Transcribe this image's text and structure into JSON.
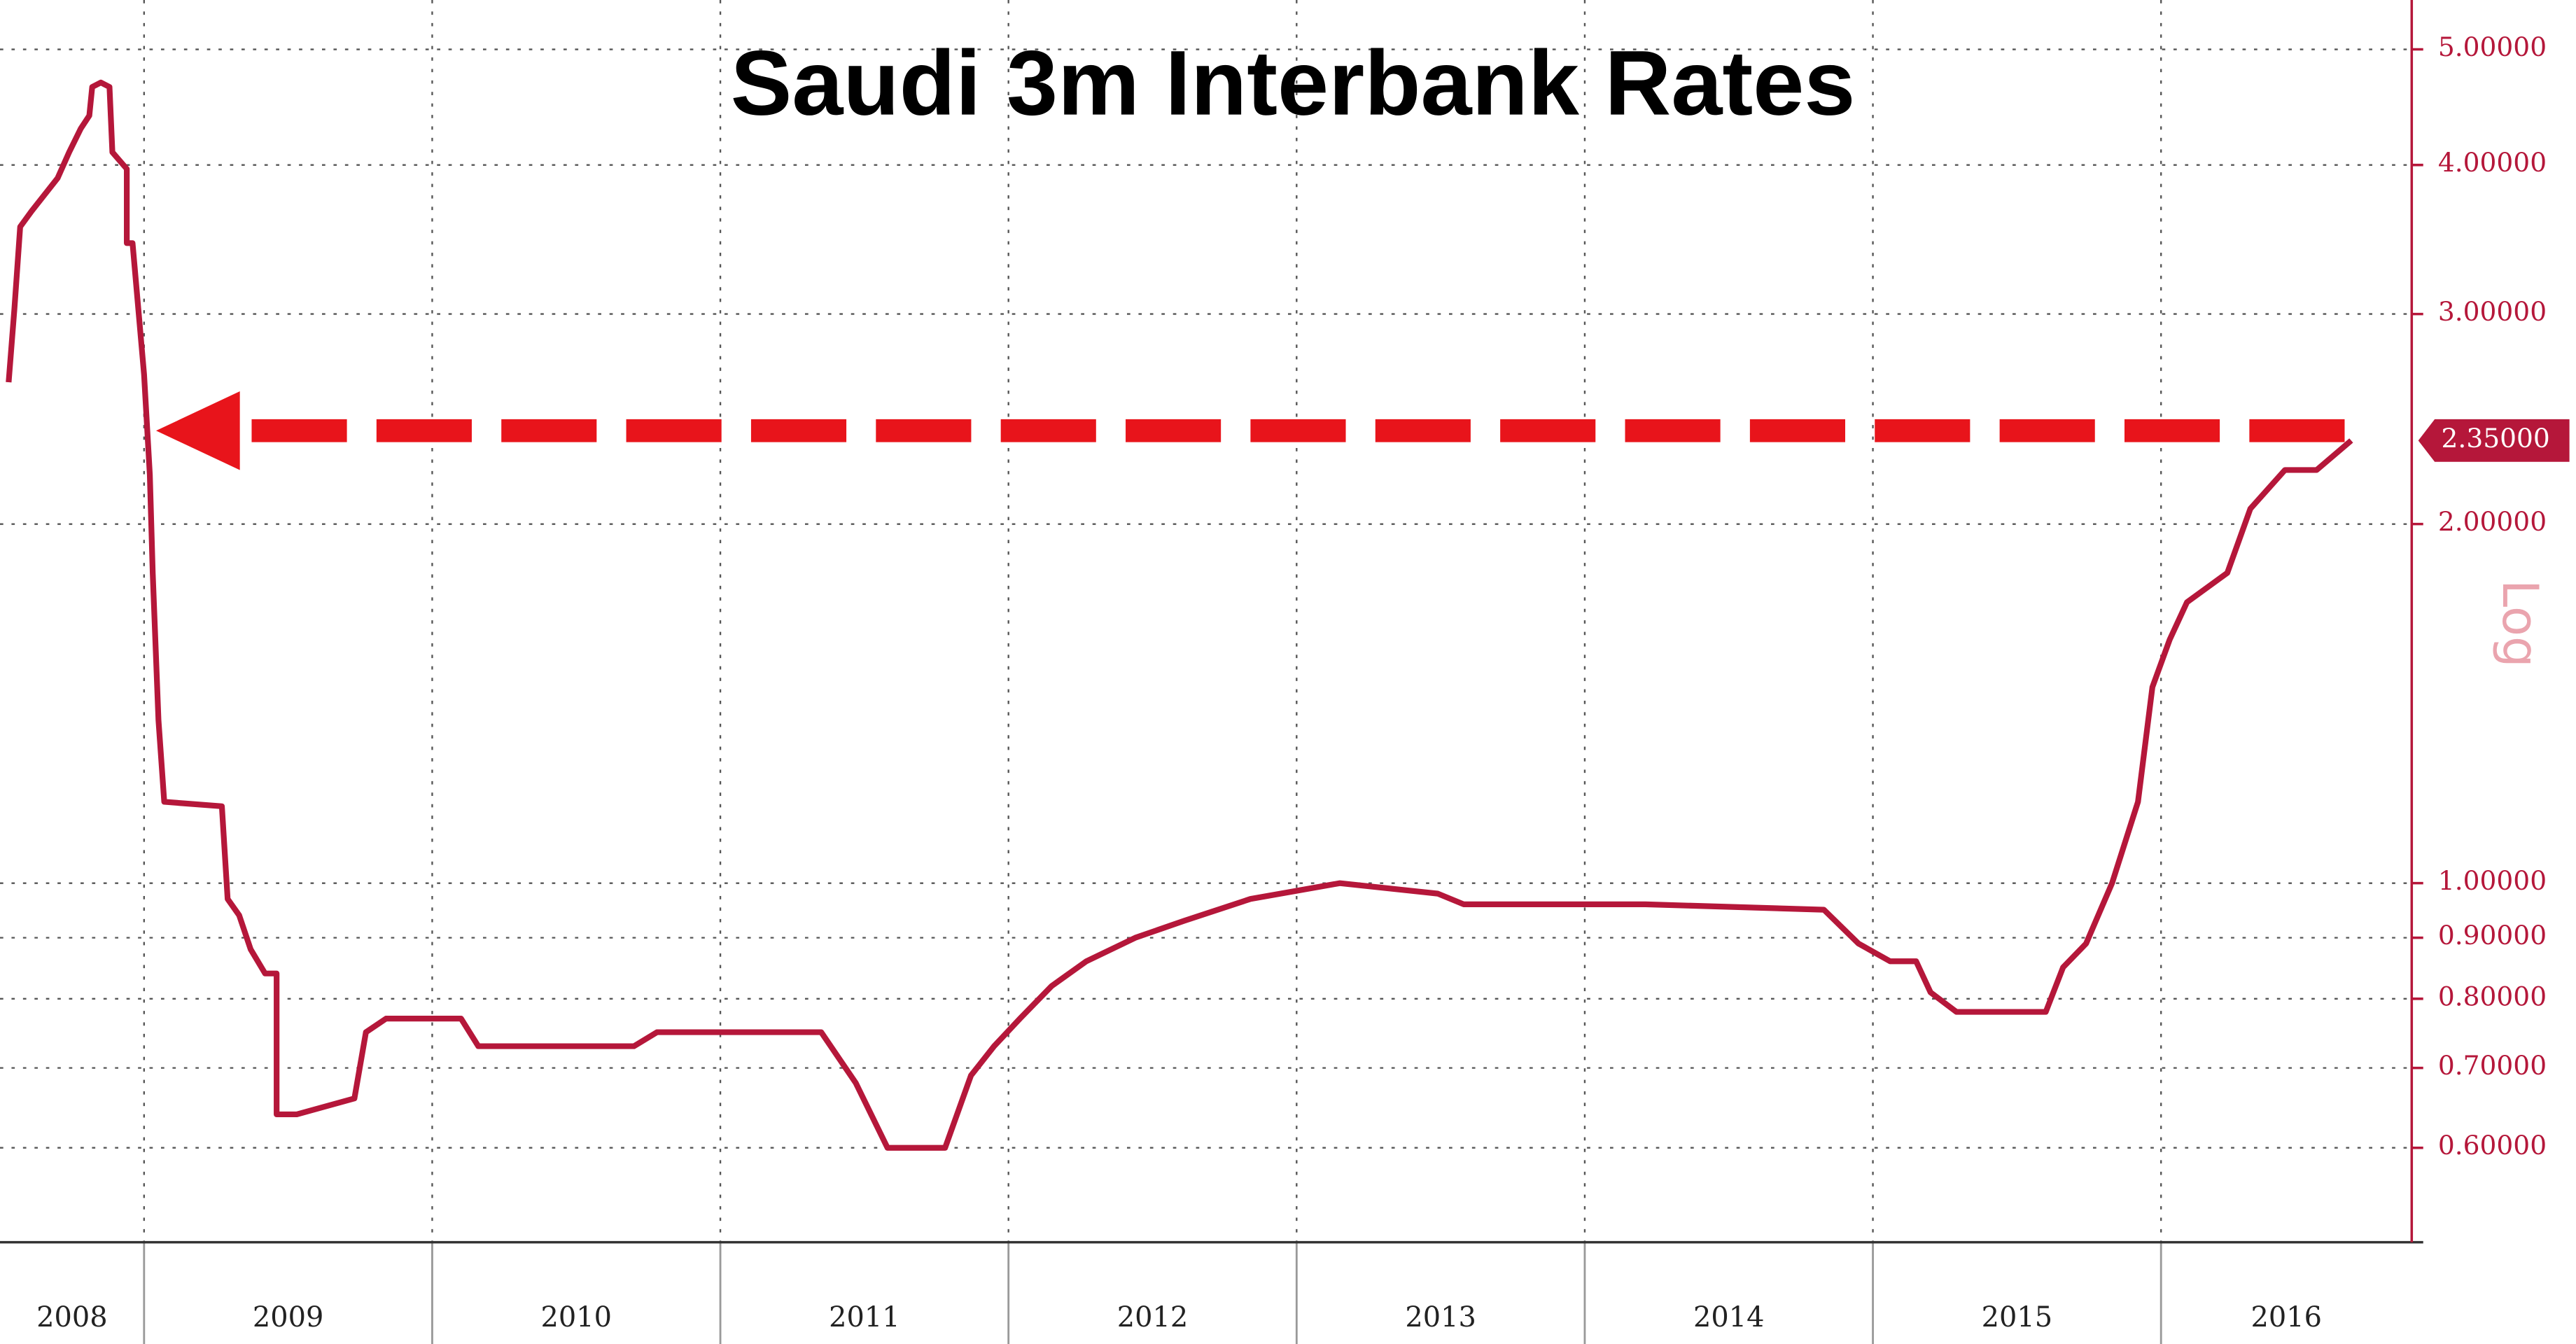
{
  "chart_data": {
    "type": "line",
    "title": "Saudi 3m Interbank Rates",
    "y2_label": "Log",
    "log_scale": true,
    "grid": true,
    "x": [
      2008.53,
      2008.55,
      2008.57,
      2008.61,
      2008.7,
      2008.74,
      2008.78,
      2008.81,
      2008.82,
      2008.85,
      2008.88,
      2008.89,
      2008.94,
      2008.94,
      2008.96,
      2008.98,
      2009.0,
      2009.02,
      2009.03,
      2009.05,
      2009.07,
      2009.27,
      2009.29,
      2009.33,
      2009.37,
      2009.42,
      2009.46,
      2009.46,
      2009.53,
      2009.73,
      2009.77,
      2009.84,
      2010.1,
      2010.16,
      2010.7,
      2010.78,
      2011.35,
      2011.47,
      2011.58,
      2011.78,
      2011.87,
      2011.95,
      2012.04,
      2012.15,
      2012.27,
      2012.44,
      2012.61,
      2012.84,
      2013.15,
      2013.49,
      2013.58,
      2014.21,
      2014.83,
      2014.95,
      2015.06,
      2015.15,
      2015.2,
      2015.29,
      2015.6,
      2015.66,
      2015.74,
      2015.83,
      2015.92,
      2015.97,
      2016.03,
      2016.09,
      2016.23,
      2016.31,
      2016.43,
      2016.54,
      2016.66
    ],
    "series": [
      {
        "color": "#b5173a",
        "axis": "y2",
        "values": [
          2.63,
          3.03,
          3.55,
          3.66,
          3.9,
          4.1,
          4.29,
          4.4,
          4.65,
          4.69,
          4.65,
          4.1,
          3.97,
          3.44,
          3.44,
          3.03,
          2.67,
          2.2,
          1.82,
          1.37,
          1.17,
          1.16,
          0.97,
          0.94,
          0.88,
          0.84,
          0.84,
          0.64,
          0.64,
          0.66,
          0.75,
          0.77,
          0.77,
          0.73,
          0.73,
          0.75,
          0.75,
          0.68,
          0.6,
          0.6,
          0.69,
          0.73,
          0.77,
          0.82,
          0.86,
          0.9,
          0.93,
          0.97,
          1.0,
          0.98,
          0.96,
          0.96,
          0.95,
          0.89,
          0.86,
          0.86,
          0.81,
          0.78,
          0.78,
          0.85,
          0.89,
          1.0,
          1.17,
          1.46,
          1.6,
          1.72,
          1.82,
          2.06,
          2.22,
          2.22,
          2.35
        ]
      }
    ],
    "xlim": [
      2008.5,
      2016.87
    ],
    "xticks": [
      2008,
      2009,
      2010,
      2011,
      2012,
      2013,
      2014,
      2015,
      2016
    ],
    "y2lim": [
      0.5,
      5.5
    ],
    "y2ticks": [
      {
        "value": 0.6,
        "label": "0.60000"
      },
      {
        "value": 0.7,
        "label": "0.70000"
      },
      {
        "value": 0.8,
        "label": "0.80000"
      },
      {
        "value": 0.9,
        "label": "0.90000"
      },
      {
        "value": 1.0,
        "label": "1.00000"
      },
      {
        "value": 2.0,
        "label": "2.00000"
      },
      {
        "value": 3.0,
        "label": "3.00000"
      },
      {
        "value": 4.0,
        "label": "4.00000"
      },
      {
        "value": 5.0,
        "label": "5.00000"
      }
    ],
    "annotation": {
      "value": 2.35,
      "label": "2.35000"
    }
  }
}
